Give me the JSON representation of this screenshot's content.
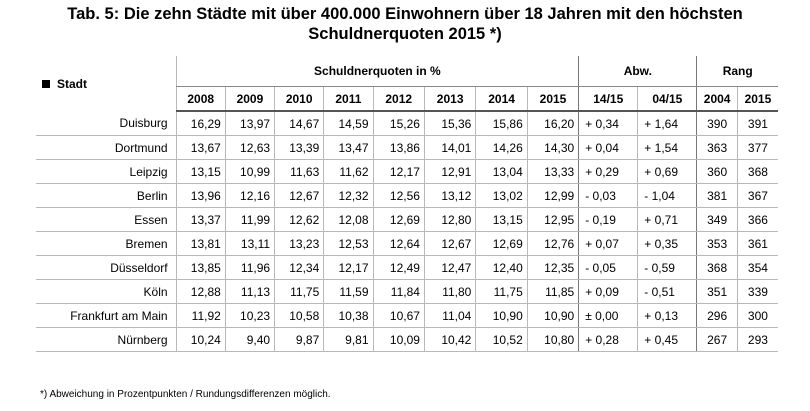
{
  "title": {
    "line1": "Tab. 5: Die zehn Städte mit über 400.000 Einwohnern über 18 Jahren mit den höchsten",
    "line2": "Schuldnerquoten 2015 *)"
  },
  "header": {
    "stadt": "Stadt",
    "group_quoten": "Schuldnerquoten in %",
    "group_abw": "Abw.",
    "group_rang": "Rang",
    "years": [
      "2008",
      "2009",
      "2010",
      "2011",
      "2012",
      "2013",
      "2014",
      "2015"
    ],
    "abw_cols": [
      "14/15",
      "04/15"
    ],
    "rang_cols": [
      "2004",
      "2015"
    ]
  },
  "rows": [
    {
      "city": "Duisburg",
      "q": [
        "16,29",
        "13,97",
        "14,67",
        "14,59",
        "15,26",
        "15,36",
        "15,86",
        "16,20"
      ],
      "abw": [
        "+ 0,34",
        "+ 1,64"
      ],
      "rang": [
        "390",
        "391"
      ]
    },
    {
      "city": "Dortmund",
      "q": [
        "13,67",
        "12,63",
        "13,39",
        "13,47",
        "13,86",
        "14,01",
        "14,26",
        "14,30"
      ],
      "abw": [
        "+ 0,04",
        "+ 1,54"
      ],
      "rang": [
        "363",
        "377"
      ]
    },
    {
      "city": "Leipzig",
      "q": [
        "13,15",
        "10,99",
        "11,63",
        "11,62",
        "12,17",
        "12,91",
        "13,04",
        "13,33"
      ],
      "abw": [
        "+ 0,29",
        "+ 0,69"
      ],
      "rang": [
        "360",
        "368"
      ]
    },
    {
      "city": "Berlin",
      "q": [
        "13,96",
        "12,16",
        "12,67",
        "12,32",
        "12,56",
        "13,12",
        "13,02",
        "12,99"
      ],
      "abw": [
        "- 0,03",
        "- 1,04"
      ],
      "rang": [
        "381",
        "367"
      ]
    },
    {
      "city": "Essen",
      "q": [
        "13,37",
        "11,99",
        "12,62",
        "12,08",
        "12,69",
        "12,80",
        "13,15",
        "12,95"
      ],
      "abw": [
        "- 0,19",
        "+ 0,71"
      ],
      "rang": [
        "349",
        "366"
      ]
    },
    {
      "city": "Bremen",
      "q": [
        "13,81",
        "13,11",
        "13,23",
        "12,53",
        "12,64",
        "12,67",
        "12,69",
        "12,76"
      ],
      "abw": [
        "+ 0,07",
        "+ 0,35"
      ],
      "rang": [
        "353",
        "361"
      ]
    },
    {
      "city": "Düsseldorf",
      "q": [
        "13,85",
        "11,96",
        "12,34",
        "12,17",
        "12,49",
        "12,47",
        "12,40",
        "12,35"
      ],
      "abw": [
        "- 0,05",
        "- 0,59"
      ],
      "rang": [
        "368",
        "354"
      ]
    },
    {
      "city": "Köln",
      "q": [
        "12,88",
        "11,13",
        "11,75",
        "11,59",
        "11,84",
        "11,80",
        "11,75",
        "11,85"
      ],
      "abw": [
        "+ 0,09",
        "- 0,51"
      ],
      "rang": [
        "351",
        "339"
      ]
    },
    {
      "city": "Frankfurt am Main",
      "q": [
        "11,92",
        "10,23",
        "10,58",
        "10,38",
        "10,67",
        "11,04",
        "10,90",
        "10,90"
      ],
      "abw": [
        "± 0,00",
        "+ 0,13"
      ],
      "rang": [
        "296",
        "300"
      ]
    },
    {
      "city": "Nürnberg",
      "q": [
        "10,24",
        "9,40",
        "9,87",
        "9,81",
        "10,09",
        "10,42",
        "10,52",
        "10,80"
      ],
      "abw": [
        "+ 0,28",
        "+ 0,45"
      ],
      "rang": [
        "267",
        "293"
      ]
    }
  ],
  "footnote": "*) Abweichung in Prozentpunkten / Rundungsdifferenzen möglich."
}
